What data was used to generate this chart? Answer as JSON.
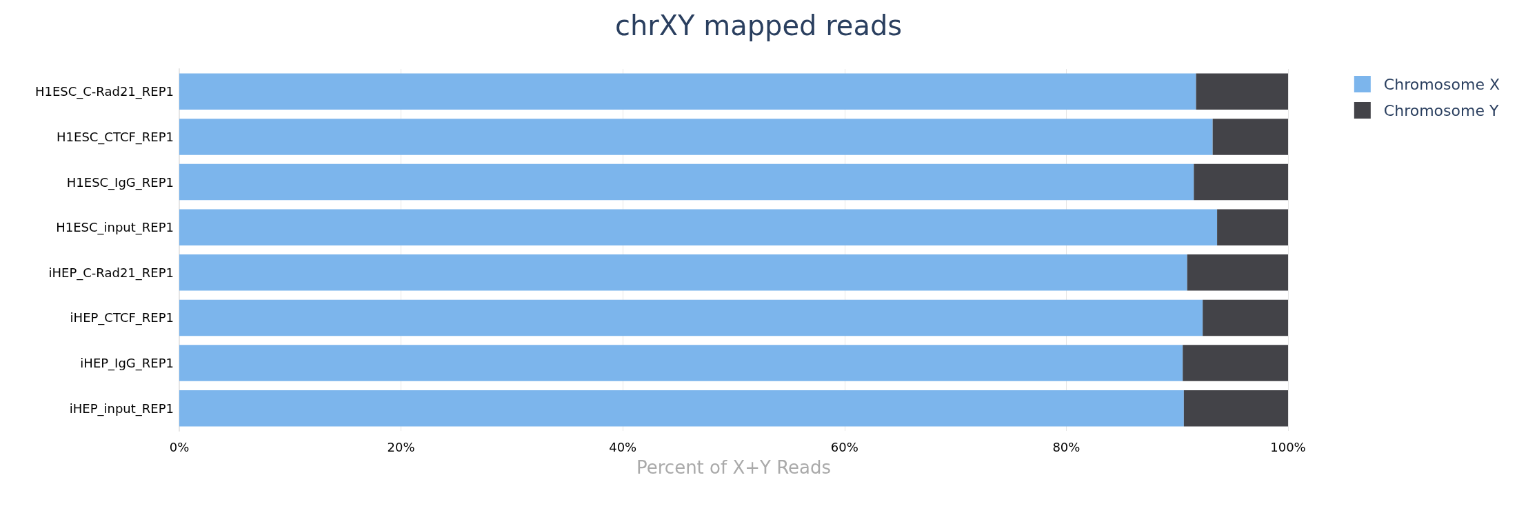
{
  "chart_data": {
    "type": "bar",
    "orientation": "horizontal",
    "stacked": true,
    "title": "chrXY mapped reads",
    "xlabel": "Percent of X+Y Reads",
    "categories": [
      "H1ESC_C-Rad21_REP1",
      "H1ESC_CTCF_REP1",
      "H1ESC_IgG_REP1",
      "H1ESC_input_REP1",
      "iHEP_C-Rad21_REP1",
      "iHEP_CTCF_REP1",
      "iHEP_IgG_REP1",
      "iHEP_input_REP1"
    ],
    "series": [
      {
        "name": "Chromosome X",
        "color": "#7cb5ec",
        "values": [
          91.7,
          93.2,
          91.5,
          93.6,
          90.9,
          92.3,
          90.5,
          90.6
        ]
      },
      {
        "name": "Chromosome Y",
        "color": "#434348",
        "values": [
          8.3,
          6.8,
          8.5,
          6.4,
          9.1,
          7.7,
          9.5,
          9.4
        ]
      }
    ],
    "xlim": [
      0,
      100
    ],
    "xticks": [
      {
        "value": 0,
        "label": "0%"
      },
      {
        "value": 20,
        "label": "20%"
      },
      {
        "value": 40,
        "label": "40%"
      },
      {
        "value": 60,
        "label": "60%"
      },
      {
        "value": 80,
        "label": "80%"
      },
      {
        "value": 100,
        "label": "100%"
      }
    ],
    "grid": "x",
    "legend": "top right"
  }
}
